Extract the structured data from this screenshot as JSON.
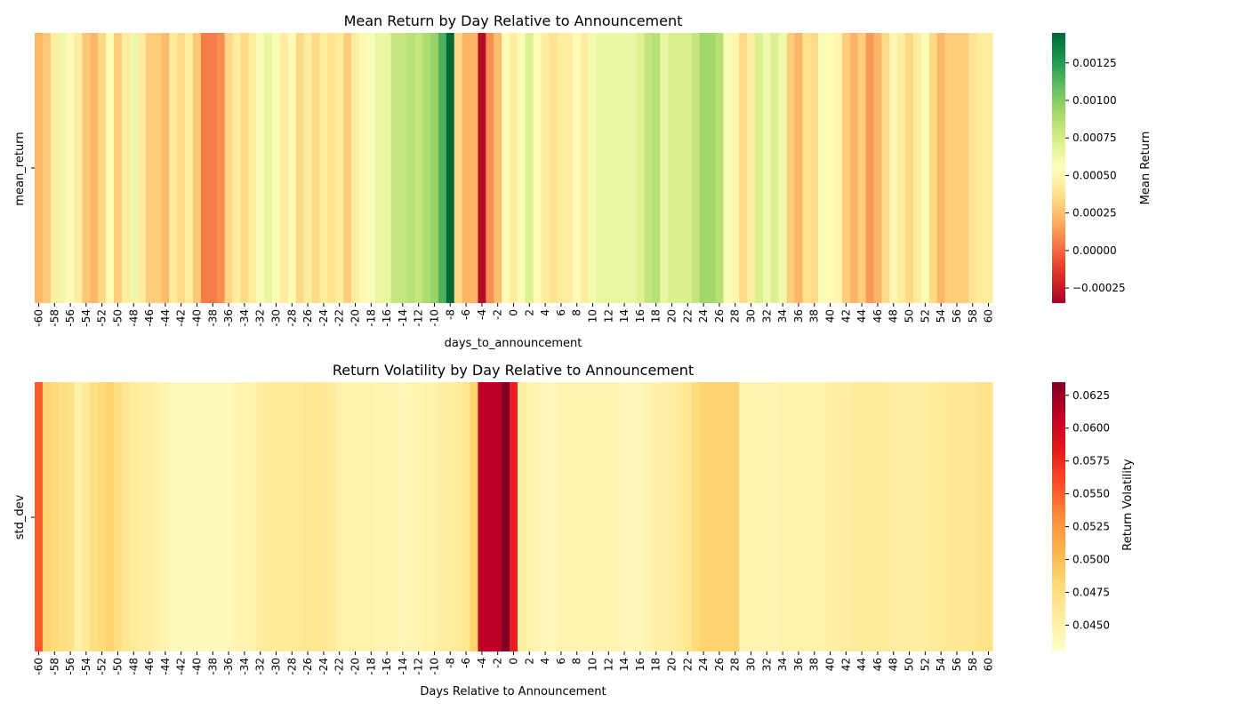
{
  "chart_data": [
    {
      "type": "heatmap",
      "title": "Mean Return by Day Relative to Announcement",
      "xlabel": "days_to_announcement",
      "ylabel": "mean_return",
      "colorbar_label": "Mean Return",
      "colormap": "RdYlGn",
      "vmin": -0.00035,
      "vmax": 0.00145,
      "colorbar_ticks": [
        -0.00025,
        0.0,
        0.00025,
        0.0005,
        0.00075,
        0.001,
        0.00125
      ],
      "colorbar_tick_labels": [
        "−0.00025",
        "0.00000",
        "0.00025",
        "0.00050",
        "0.00075",
        "0.00100",
        "0.00125"
      ],
      "rows": [
        ""
      ],
      "x_start": -60,
      "x_end": 60,
      "x_tick_step": 2,
      "values": [
        0.00022,
        0.00028,
        0.00045,
        0.00062,
        0.00052,
        0.00044,
        0.00028,
        0.00022,
        0.00035,
        0.00052,
        0.0003,
        0.00044,
        0.00062,
        0.00044,
        0.0003,
        0.0003,
        0.00024,
        0.00044,
        0.00035,
        0.00044,
        0.00028,
        5e-05,
        5e-05,
        0.0001,
        0.00035,
        0.00044,
        0.00035,
        0.00044,
        0.00058,
        0.00065,
        0.00058,
        0.00044,
        0.00052,
        0.00035,
        0.00044,
        0.00035,
        0.00044,
        0.00038,
        0.00044,
        0.0003,
        0.00044,
        0.0005,
        0.00058,
        0.00065,
        0.00065,
        0.0008,
        0.0008,
        0.00085,
        0.0008,
        0.00088,
        0.00095,
        0.00115,
        0.00145,
        0.00035,
        0.00022,
        0.00022,
        -0.0003,
        0.0001,
        0.00025,
        0.00052,
        0.00045,
        0.00058,
        0.00072,
        0.00052,
        0.00044,
        0.00038,
        0.00044,
        0.00044,
        0.00052,
        0.00044,
        0.0006,
        0.00065,
        0.00065,
        0.00065,
        0.00065,
        0.00065,
        0.0007,
        0.0008,
        0.00085,
        0.00065,
        0.00072,
        0.00072,
        0.00072,
        0.0008,
        0.00092,
        0.00092,
        0.00085,
        0.00058,
        0.0005,
        0.00035,
        0.00045,
        0.00072,
        0.00062,
        0.00072,
        0.00062,
        0.0003,
        0.00022,
        0.00038,
        0.00035,
        0.00058,
        0.00052,
        0.0005,
        0.0003,
        0.00022,
        0.0003,
        0.00013,
        0.00022,
        0.00035,
        0.0005,
        0.00044,
        0.00035,
        0.00044,
        0.00058,
        0.00035,
        0.00022,
        0.0003,
        0.0003,
        0.0003,
        0.0004,
        0.00044,
        0.00044
      ]
    },
    {
      "type": "heatmap",
      "title": "Return Volatility by Day Relative to Announcement",
      "xlabel": "Days Relative to Announcement",
      "ylabel": "std_dev",
      "colorbar_label": "Return Volatility",
      "colormap": "YlOrRd",
      "vmin": 0.043,
      "vmax": 0.0635,
      "colorbar_ticks": [
        0.045,
        0.0475,
        0.05,
        0.0525,
        0.055,
        0.0575,
        0.06,
        0.0625
      ],
      "colorbar_tick_labels": [
        "0.0450",
        "0.0475",
        "0.0500",
        "0.0525",
        "0.0550",
        "0.0575",
        "0.0600",
        "0.0625"
      ],
      "rows": [
        ""
      ],
      "x_start": -60,
      "x_end": 60,
      "x_tick_step": 2,
      "values": [
        0.0555,
        0.0485,
        0.048,
        0.0475,
        0.047,
        0.045,
        0.046,
        0.0475,
        0.048,
        0.0485,
        0.0475,
        0.0465,
        0.046,
        0.0455,
        0.0455,
        0.045,
        0.0445,
        0.044,
        0.044,
        0.044,
        0.044,
        0.044,
        0.044,
        0.044,
        0.044,
        0.0445,
        0.0445,
        0.045,
        0.0455,
        0.046,
        0.046,
        0.046,
        0.046,
        0.0462,
        0.0465,
        0.0465,
        0.0462,
        0.046,
        0.045,
        0.045,
        0.045,
        0.045,
        0.045,
        0.0445,
        0.0445,
        0.0445,
        0.0442,
        0.0445,
        0.0445,
        0.045,
        0.045,
        0.0455,
        0.0455,
        0.046,
        0.0465,
        0.0485,
        0.061,
        0.061,
        0.061,
        0.0635,
        0.058,
        0.0455,
        0.045,
        0.0445,
        0.0442,
        0.044,
        0.0445,
        0.0445,
        0.0445,
        0.0445,
        0.0445,
        0.0445,
        0.0445,
        0.0445,
        0.0442,
        0.0442,
        0.0442,
        0.0445,
        0.045,
        0.0452,
        0.0455,
        0.046,
        0.0465,
        0.048,
        0.0485,
        0.0485,
        0.0485,
        0.0485,
        0.0485,
        0.0445,
        0.0445,
        0.0445,
        0.0445,
        0.0445,
        0.045,
        0.045,
        0.045,
        0.045,
        0.045,
        0.045,
        0.0452,
        0.0455,
        0.0455,
        0.0458,
        0.046,
        0.046,
        0.0458,
        0.0458,
        0.0455,
        0.0455,
        0.0455,
        0.0455,
        0.0455,
        0.0458,
        0.046,
        0.0462,
        0.0462,
        0.0462,
        0.0465,
        0.0468,
        0.047
      ]
    }
  ]
}
